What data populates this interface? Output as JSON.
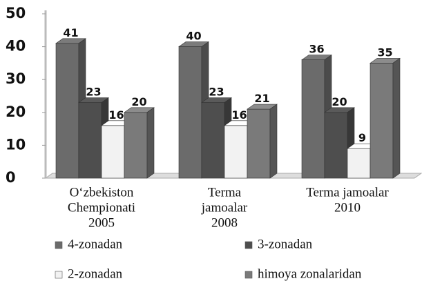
{
  "chart_data": {
    "type": "bar3d",
    "categories": [
      [
        "O‘zbekiston",
        "Chempionati",
        "2005"
      ],
      [
        "Terma",
        "jamoalar",
        "2008"
      ],
      [
        "Terma jamoalar",
        "2010"
      ]
    ],
    "series": [
      {
        "name": "4-zonadan",
        "color": "#6b6b6b",
        "values": [
          41,
          40,
          36
        ]
      },
      {
        "name": "3-zonadan",
        "color": "#4e4e4e",
        "values": [
          23,
          23,
          20
        ]
      },
      {
        "name": "2-zonadan",
        "color": "#f2f2f2",
        "values": [
          16,
          16,
          9
        ]
      },
      {
        "name": "himoya zonalaridan",
        "color": "#7a7a7a",
        "values": [
          20,
          21,
          35
        ]
      }
    ],
    "ylim": [
      0,
      50
    ],
    "yticks": [
      0,
      10,
      20,
      30,
      40,
      50
    ],
    "legend": "bottom"
  }
}
